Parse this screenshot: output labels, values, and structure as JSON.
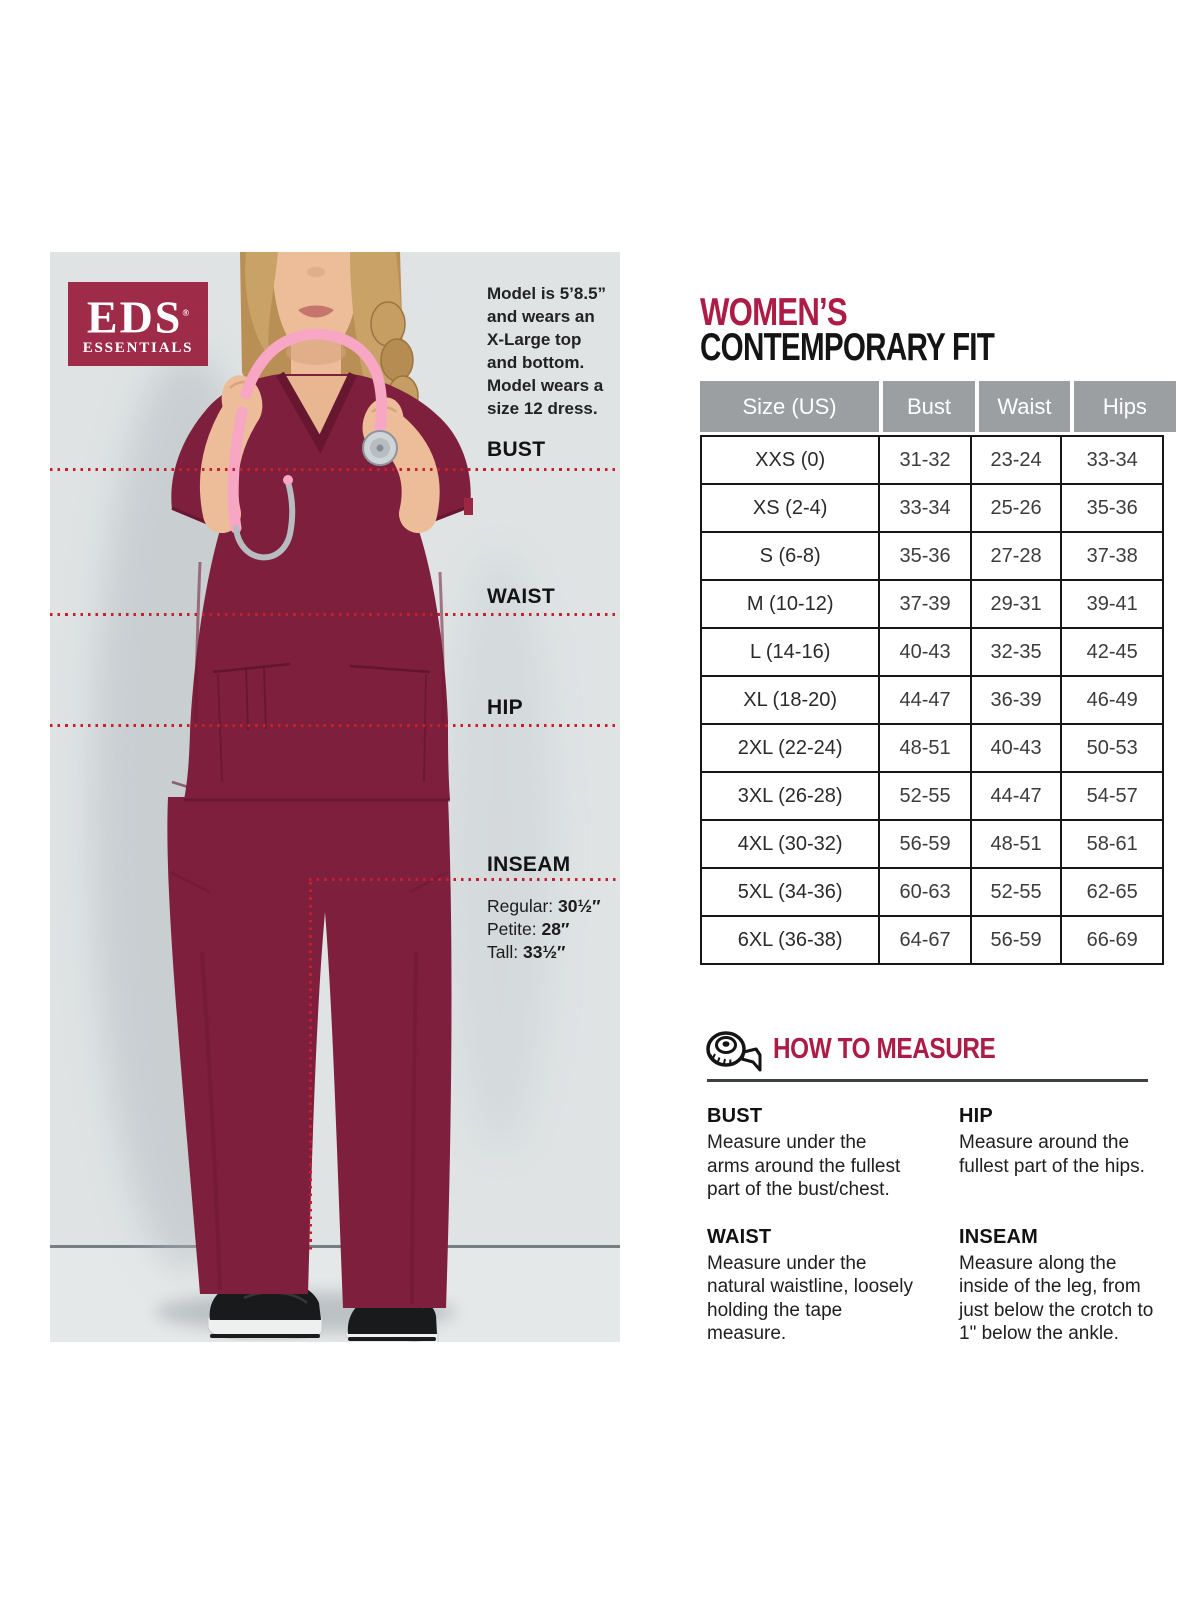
{
  "brand": {
    "name": "EDS",
    "reg": "®",
    "sub": "ESSENTIALS"
  },
  "photo": {
    "model_note": "Model is 5’8.5”\nand wears an\nX-Large top\nand bottom.\nModel wears a\nsize 12 dress.",
    "labels": {
      "bust": "BUST",
      "waist": "WAIST",
      "hip": "HIP",
      "inseam": "INSEAM"
    },
    "inseam_options": [
      {
        "label": "Regular:",
        "value": "30½″"
      },
      {
        "label": "Petite:",
        "value": "28″"
      },
      {
        "label": "Tall:",
        "value": "33½″"
      }
    ]
  },
  "size_chart": {
    "title_line1": "WOMEN’S",
    "title_line2": "CONTEMPORARY FIT",
    "columns": [
      "Size (US)",
      "Bust",
      "Waist",
      "Hips"
    ],
    "rows": [
      [
        "XXS (0)",
        "31-32",
        "23-24",
        "33-34"
      ],
      [
        "XS (2-4)",
        "33-34",
        "25-26",
        "35-36"
      ],
      [
        "S (6-8)",
        "35-36",
        "27-28",
        "37-38"
      ],
      [
        "M (10-12)",
        "37-39",
        "29-31",
        "39-41"
      ],
      [
        "L (14-16)",
        "40-43",
        "32-35",
        "42-45"
      ],
      [
        "XL (18-20)",
        "44-47",
        "36-39",
        "46-49"
      ],
      [
        "2XL (22-24)",
        "48-51",
        "40-43",
        "50-53"
      ],
      [
        "3XL (26-28)",
        "52-55",
        "44-47",
        "54-57"
      ],
      [
        "4XL (30-32)",
        "56-59",
        "48-51",
        "58-61"
      ],
      [
        "5XL (34-36)",
        "60-63",
        "52-55",
        "62-65"
      ],
      [
        "6XL (36-38)",
        "64-67",
        "56-59",
        "66-69"
      ]
    ]
  },
  "how_to_measure": {
    "heading": "HOW TO MEASURE",
    "icon": "tape-measure-icon",
    "items": [
      {
        "title": "BUST",
        "text": "Measure under the arms around the fullest part of the bust/chest."
      },
      {
        "title": "WAIST",
        "text": "Measure under the natural waistline, loosely holding the tape measure."
      },
      {
        "title": "HIP",
        "text": "Measure around the fullest part of the hips."
      },
      {
        "title": "INSEAM",
        "text": "Measure along the inside of the leg, from just below the crotch to 1\" below the ankle."
      }
    ]
  },
  "colors": {
    "accent_crimson": "#ac1c46",
    "logo_bg": "#9e2b47",
    "table_header_bg": "#9b9fa2",
    "dotted_line_red": "#c51f30",
    "scrub_wine": "#7f1f3e",
    "photo_bg": "#dfe3e4"
  }
}
